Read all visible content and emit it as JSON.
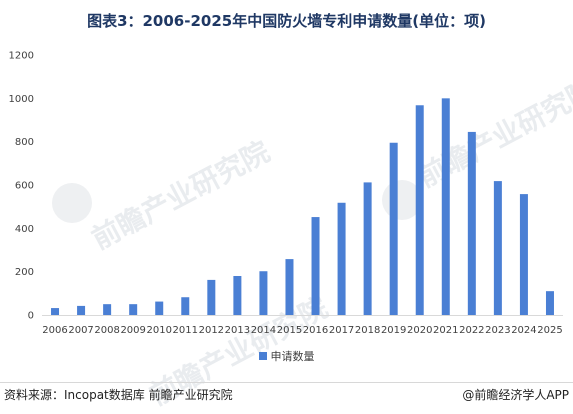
{
  "title": "图表3：2006-2025年中国防火墙专利申请数量(单位：项)",
  "watermark": "前瞻产业研究院",
  "source": "资料来源：Incopat数据库 前瞻产业研究院",
  "credit": "@前瞻经济学人APP",
  "legend": {
    "label": "申请数量"
  },
  "colors": {
    "bar": "#4a7fd4",
    "title": "#1f3864",
    "grid": "#d9d9d9"
  },
  "chart_data": {
    "type": "bar",
    "title": "图表3：2006-2025年中国防火墙专利申请数量(单位：项)",
    "xlabel": "",
    "ylabel": "",
    "ylim": [
      0,
      1200
    ],
    "yticks": [
      0,
      200,
      400,
      600,
      800,
      1000,
      1200
    ],
    "grid": false,
    "legend_position": "bottom",
    "categories": [
      "2006",
      "2007",
      "2008",
      "2009",
      "2010",
      "2011",
      "2012",
      "2013",
      "2014",
      "2015",
      "2016",
      "2017",
      "2018",
      "2019",
      "2020",
      "2021",
      "2022",
      "2023",
      "2024",
      "2025"
    ],
    "series": [
      {
        "name": "申请数量",
        "values": [
          32,
          42,
          50,
          50,
          62,
          82,
          162,
          180,
          202,
          258,
          452,
          518,
          612,
          795,
          968,
          1000,
          845,
          618,
          558,
          110
        ]
      }
    ]
  }
}
